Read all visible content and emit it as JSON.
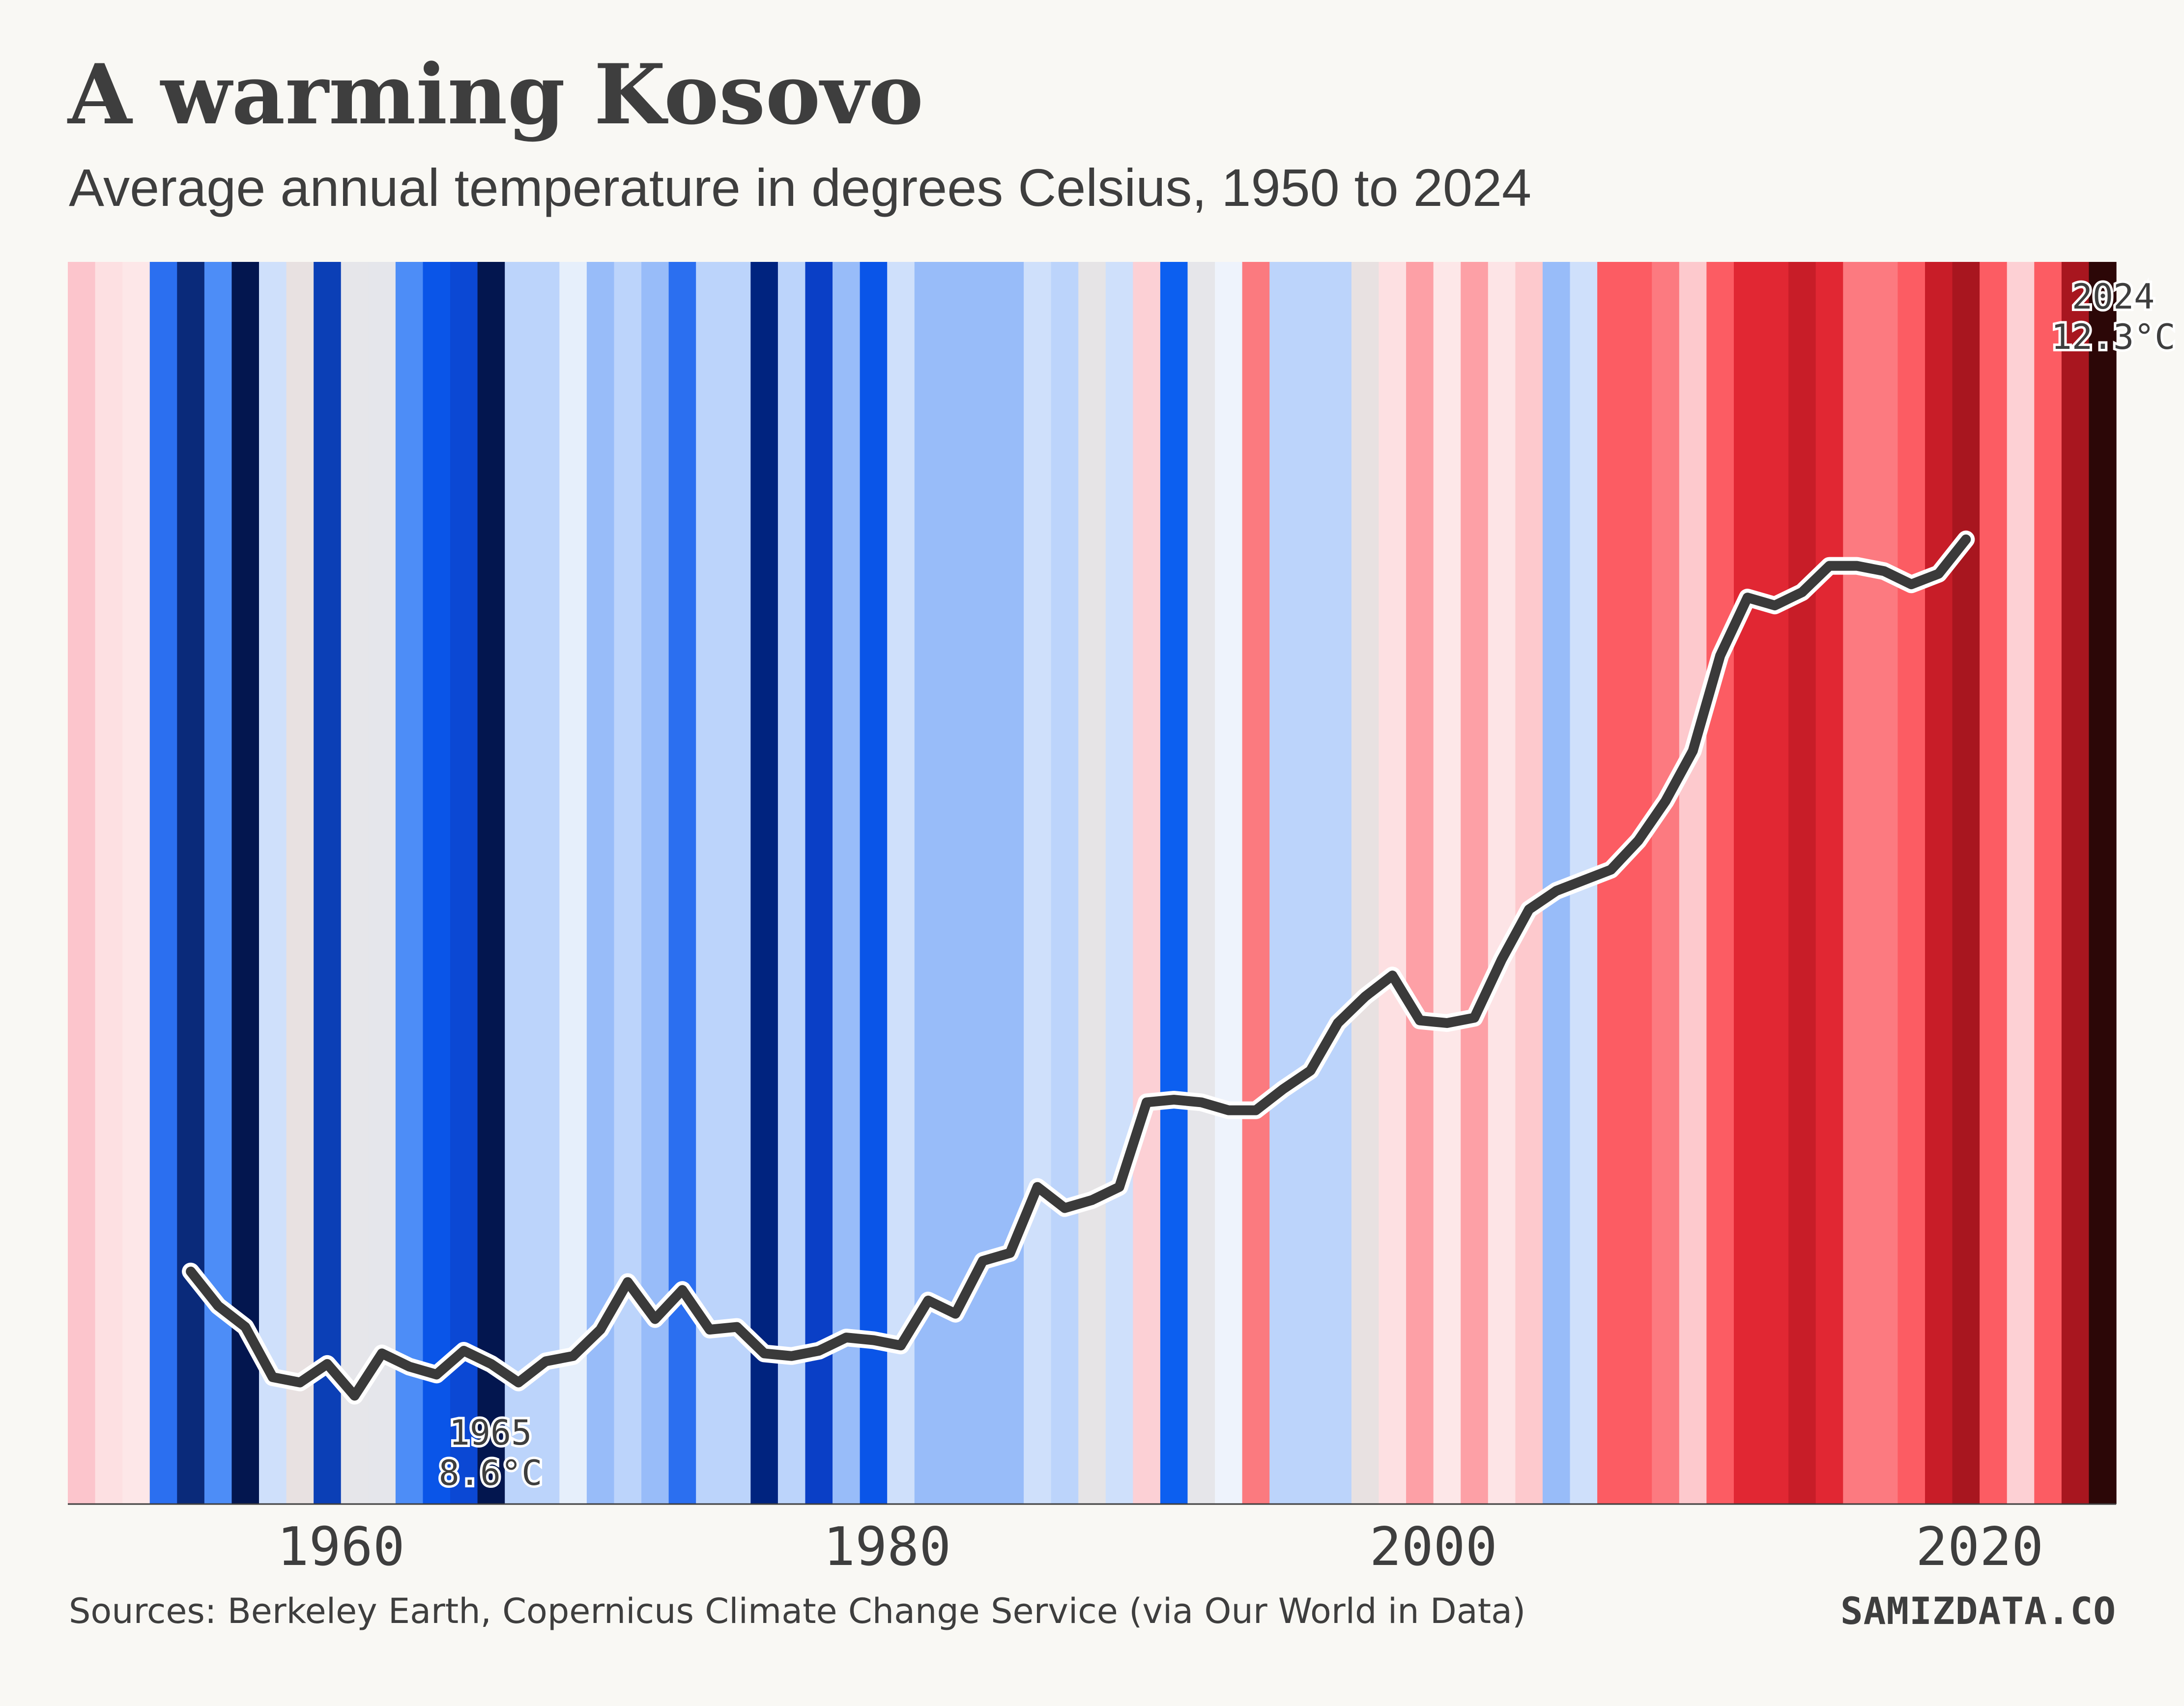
{
  "header": {
    "title": "A warming Kosovo",
    "subtitle": "Average annual temperature in degrees Celsius, 1950 to 2024"
  },
  "footer": {
    "source": "Sources: Berkeley Earth, Copernicus Climate Change Service (via Our World in Data)",
    "brand": "SAMIZDATA.CO"
  },
  "chart_data": {
    "type": "line",
    "title": "A warming Kosovo",
    "subtitle": "Average annual temperature in degrees Celsius, 1950 to 2024",
    "xlabel": "",
    "ylabel": "",
    "xlim": [
      1950,
      2025
    ],
    "ylim": [
      8.2,
      12.9
    ],
    "x_ticks": [
      "1960",
      "1980",
      "2000",
      "2020"
    ],
    "y_ticks_labels": false,
    "background_stripes": {
      "years": [
        1950,
        1951,
        1952,
        1953,
        1954,
        1955,
        1956,
        1957,
        1958,
        1959,
        1960,
        1961,
        1962,
        1963,
        1964,
        1965,
        1966,
        1967,
        1968,
        1969,
        1970,
        1971,
        1972,
        1973,
        1974,
        1975,
        1976,
        1977,
        1978,
        1979,
        1980,
        1981,
        1982,
        1983,
        1984,
        1985,
        1986,
        1987,
        1988,
        1989,
        1990,
        1991,
        1992,
        1993,
        1994,
        1995,
        1996,
        1997,
        1998,
        1999,
        2000,
        2001,
        2002,
        2003,
        2004,
        2005,
        2006,
        2007,
        2008,
        2009,
        2010,
        2011,
        2012,
        2013,
        2014,
        2015,
        2016,
        2017,
        2018,
        2019,
        2020,
        2021,
        2022,
        2023,
        2024
      ],
      "colors": [
        "#fcc5cc",
        "#fde0e2",
        "#fde7e8",
        "#2b6ff0",
        "#0a2a7a",
        "#4d8df7",
        "#03164f",
        "#cfe0fb",
        "#e8e1e1",
        "#0b3fb6",
        "#e6e6ea",
        "#e5e6eb",
        "#4d8df7",
        "#0a55e8",
        "#0b48d4",
        "#03164f",
        "#bcd4fb",
        "#bcd4fb",
        "#e6effb",
        "#98bcf9",
        "#bcd4fb",
        "#98bcf9",
        "#2b6ff0",
        "#bcd4fb",
        "#bcd4fb",
        "#00237f",
        "#bcd4fb",
        "#0a3fc6",
        "#98bcf9",
        "#0a55e8",
        "#cfe0fb",
        "#98bcf9",
        "#98bcf9",
        "#98bcf9",
        "#98bcf9",
        "#cfe0fb",
        "#bcd4fb",
        "#e6e4e6",
        "#cfe0fb",
        "#fcd0d5",
        "#0c5ff0",
        "#e6e6ea",
        "#eef3fc",
        "#fb7a7f",
        "#bcd4fb",
        "#bcd4fb",
        "#bcd4fb",
        "#e8e1e1",
        "#fde0e2",
        "#fda0a6",
        "#fde7e8",
        "#fda0a6",
        "#fde4e6",
        "#fdc9cd",
        "#98bcf9",
        "#cfe0fb",
        "#fc5c63",
        "#fc5c63",
        "#fc7a80",
        "#fdc9cd",
        "#fc5c63",
        "#e12733",
        "#e12733",
        "#c81d28",
        "#e12733",
        "#fc7a80",
        "#fc7a80",
        "#fc5c63",
        "#c81d28",
        "#a8161f",
        "#fc5c63",
        "#fdd0d4",
        "#fc5c63",
        "#a8161f",
        "#2c0707"
      ]
    },
    "series": [
      {
        "x": [
          1954,
          1955,
          1956,
          1957,
          1958,
          1959,
          1960,
          1961,
          1962,
          1963,
          1964,
          1965,
          1966,
          1967,
          1968,
          1969,
          1970,
          1971,
          1972,
          1973,
          1974,
          1975,
          1976,
          1977,
          1978,
          1979,
          1980,
          1981,
          1982,
          1983,
          1984,
          1985,
          1986,
          1987,
          1988,
          1989,
          1990,
          1991,
          1992,
          1993,
          1994,
          1995,
          1996,
          1997,
          1998,
          1999,
          2000,
          2001,
          2002,
          2003,
          2004,
          2005,
          2006,
          2007,
          2008,
          2009,
          2010,
          2011,
          2012,
          2013,
          2014,
          2015,
          2016,
          2017,
          2018,
          2019
        ],
        "y": [
          9.08,
          8.95,
          8.87,
          8.68,
          8.66,
          8.73,
          8.61,
          8.77,
          8.72,
          8.69,
          8.78,
          8.73,
          8.66,
          8.74,
          8.76,
          8.86,
          9.04,
          8.9,
          9.01,
          8.86,
          8.87,
          8.77,
          8.76,
          8.78,
          8.83,
          8.82,
          8.8,
          8.97,
          8.92,
          9.12,
          9.15,
          9.4,
          9.32,
          9.35,
          9.4,
          9.72,
          9.73,
          9.72,
          9.69,
          9.69,
          9.77,
          9.84,
          10.02,
          10.12,
          10.2,
          10.03,
          10.02,
          10.04,
          10.26,
          10.45,
          10.52,
          10.56,
          10.6,
          10.71,
          10.86,
          11.05,
          11.41,
          11.63,
          11.6,
          11.65,
          11.75,
          11.75,
          11.73,
          11.68,
          11.72,
          11.85
        ]
      }
    ],
    "annotations": [
      {
        "year_label": "1965",
        "value_label": "8.6°C",
        "kind": "min"
      },
      {
        "year_label": "2024",
        "value_label": "12.3°C",
        "kind": "max"
      }
    ],
    "grid": false,
    "legend": "none"
  }
}
